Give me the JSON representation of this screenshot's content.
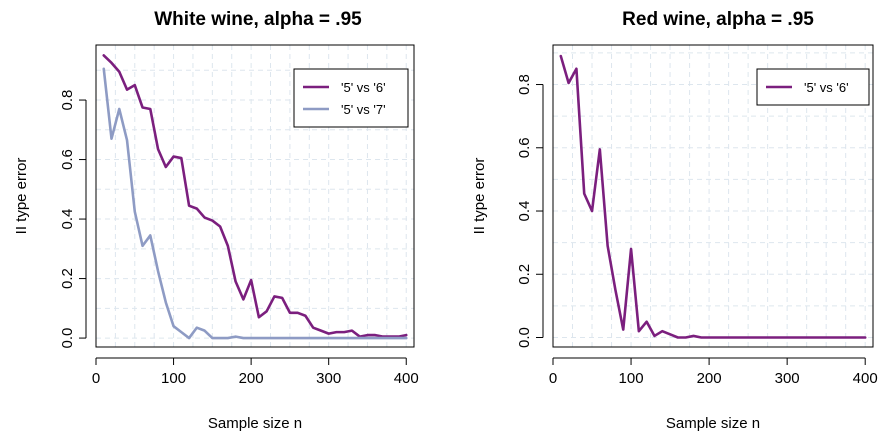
{
  "chart_data": [
    {
      "type": "line",
      "title": "White wine, alpha = .95",
      "xlabel": "Sample size n",
      "ylabel": "II type error",
      "xlim": [
        0,
        410
      ],
      "ylim": [
        -0.03,
        0.985
      ],
      "xticks": [
        0,
        100,
        200,
        300,
        400
      ],
      "yticks": [
        0.0,
        0.2,
        0.4,
        0.6,
        0.8
      ],
      "grid": true,
      "legend": "top-right",
      "series": [
        {
          "name": "'5' vs '6'",
          "color": "#7b1f7e",
          "x": [
            10,
            20,
            30,
            40,
            50,
            60,
            70,
            80,
            90,
            100,
            110,
            120,
            130,
            140,
            150,
            160,
            170,
            180,
            190,
            200,
            210,
            220,
            230,
            240,
            250,
            260,
            270,
            280,
            290,
            300,
            310,
            320,
            330,
            340,
            350,
            360,
            370,
            380,
            390,
            400
          ],
          "y": [
            0.95,
            0.925,
            0.895,
            0.835,
            0.85,
            0.775,
            0.77,
            0.635,
            0.575,
            0.61,
            0.605,
            0.445,
            0.435,
            0.405,
            0.395,
            0.375,
            0.31,
            0.19,
            0.13,
            0.195,
            0.07,
            0.09,
            0.14,
            0.135,
            0.085,
            0.085,
            0.075,
            0.035,
            0.025,
            0.015,
            0.02,
            0.02,
            0.025,
            0.005,
            0.01,
            0.01,
            0.005,
            0.005,
            0.005,
            0.01
          ]
        },
        {
          "name": "'5' vs '7'",
          "color": "#8e9bc4",
          "x": [
            10,
            20,
            30,
            40,
            50,
            60,
            70,
            80,
            90,
            100,
            110,
            120,
            130,
            140,
            150,
            160,
            170,
            180,
            190,
            200,
            210,
            220,
            230,
            240,
            250,
            260,
            270,
            280,
            290,
            300,
            310,
            320,
            330,
            340,
            350,
            360,
            370,
            380,
            390,
            400
          ],
          "y": [
            0.905,
            0.67,
            0.77,
            0.665,
            0.425,
            0.31,
            0.345,
            0.225,
            0.12,
            0.04,
            0.02,
            0.0,
            0.035,
            0.025,
            0.0,
            0.0,
            0.0,
            0.005,
            0.0,
            0.0,
            0.0,
            0.0,
            0.0,
            0.0,
            0.0,
            0.0,
            0.0,
            0.0,
            0.0,
            0.0,
            0.0,
            0.0,
            0.0,
            0.0,
            0.0,
            0.0,
            0.0,
            0.0,
            0.0,
            0.0
          ]
        }
      ]
    },
    {
      "type": "line",
      "title": "Red wine, alpha = .95",
      "xlabel": "Sample size n",
      "ylabel": "II type error",
      "xlim": [
        0,
        410
      ],
      "ylim": [
        -0.03,
        0.925
      ],
      "xticks": [
        0,
        100,
        200,
        300,
        400
      ],
      "yticks": [
        0.0,
        0.2,
        0.4,
        0.6,
        0.8
      ],
      "grid": true,
      "legend": "top-right",
      "series": [
        {
          "name": "'5' vs '6'",
          "color": "#7b1f7e",
          "x": [
            10,
            20,
            30,
            40,
            50,
            60,
            70,
            80,
            90,
            100,
            110,
            120,
            130,
            140,
            150,
            160,
            170,
            180,
            190,
            200,
            210,
            220,
            230,
            240,
            250,
            260,
            270,
            280,
            290,
            300,
            310,
            320,
            330,
            340,
            350,
            360,
            370,
            380,
            390,
            400
          ],
          "y": [
            0.89,
            0.805,
            0.85,
            0.455,
            0.4,
            0.595,
            0.29,
            0.15,
            0.025,
            0.28,
            0.02,
            0.05,
            0.005,
            0.02,
            0.01,
            0.0,
            0.0,
            0.005,
            0.0,
            0.0,
            0.0,
            0.0,
            0.0,
            0.0,
            0.0,
            0.0,
            0.0,
            0.0,
            0.0,
            0.0,
            0.0,
            0.0,
            0.0,
            0.0,
            0.0,
            0.0,
            0.0,
            0.0,
            0.0,
            0.0
          ]
        }
      ]
    }
  ]
}
